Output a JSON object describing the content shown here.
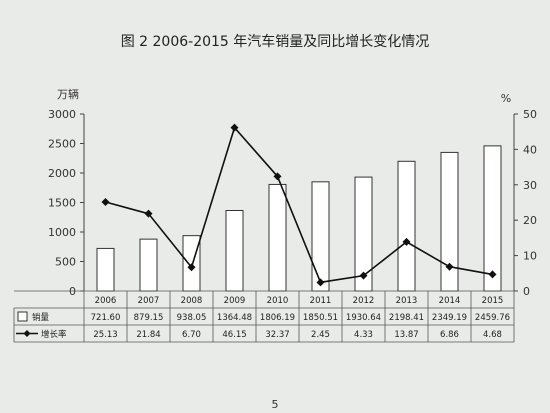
{
  "chart_data": {
    "type": "bar+line",
    "title": "图 2   2006-2015 年汽车销量及同比增长变化情况",
    "categories": [
      "2006",
      "2007",
      "2008",
      "2009",
      "2010",
      "2011",
      "2012",
      "2013",
      "2014",
      "2015"
    ],
    "series": [
      {
        "name": "销量",
        "type": "bar",
        "axis": "left",
        "values": [
          721.6,
          879.15,
          938.05,
          1364.48,
          1806.19,
          1850.51,
          1930.64,
          2198.41,
          2349.19,
          2459.76
        ],
        "labels": [
          "721.60",
          "879.15",
          "938.05",
          "1364.48",
          "1806.19",
          "1850.51",
          "1930.64",
          "2198.41",
          "2349.19",
          "2459.76"
        ]
      },
      {
        "name": "增长率",
        "type": "line",
        "axis": "right",
        "values": [
          25.13,
          21.84,
          6.7,
          46.15,
          32.37,
          2.45,
          4.33,
          13.87,
          6.86,
          4.68
        ],
        "labels": [
          "25.13",
          "21.84",
          "6.70",
          "46.15",
          "32.37",
          "2.45",
          "4.33",
          "13.87",
          "6.86",
          "4.68"
        ]
      }
    ],
    "left_axis": {
      "label": "万辆",
      "ylim": [
        0,
        3000
      ],
      "ticks": [
        "0",
        "500",
        "1000",
        "1500",
        "2000",
        "2500",
        "3000"
      ]
    },
    "right_axis": {
      "label": "%",
      "ylim": [
        0,
        50
      ],
      "ticks": [
        "0",
        "10",
        "20",
        "30",
        "40",
        "50"
      ]
    },
    "grid": false,
    "legend": "data-table-below"
  },
  "page_number": "5"
}
